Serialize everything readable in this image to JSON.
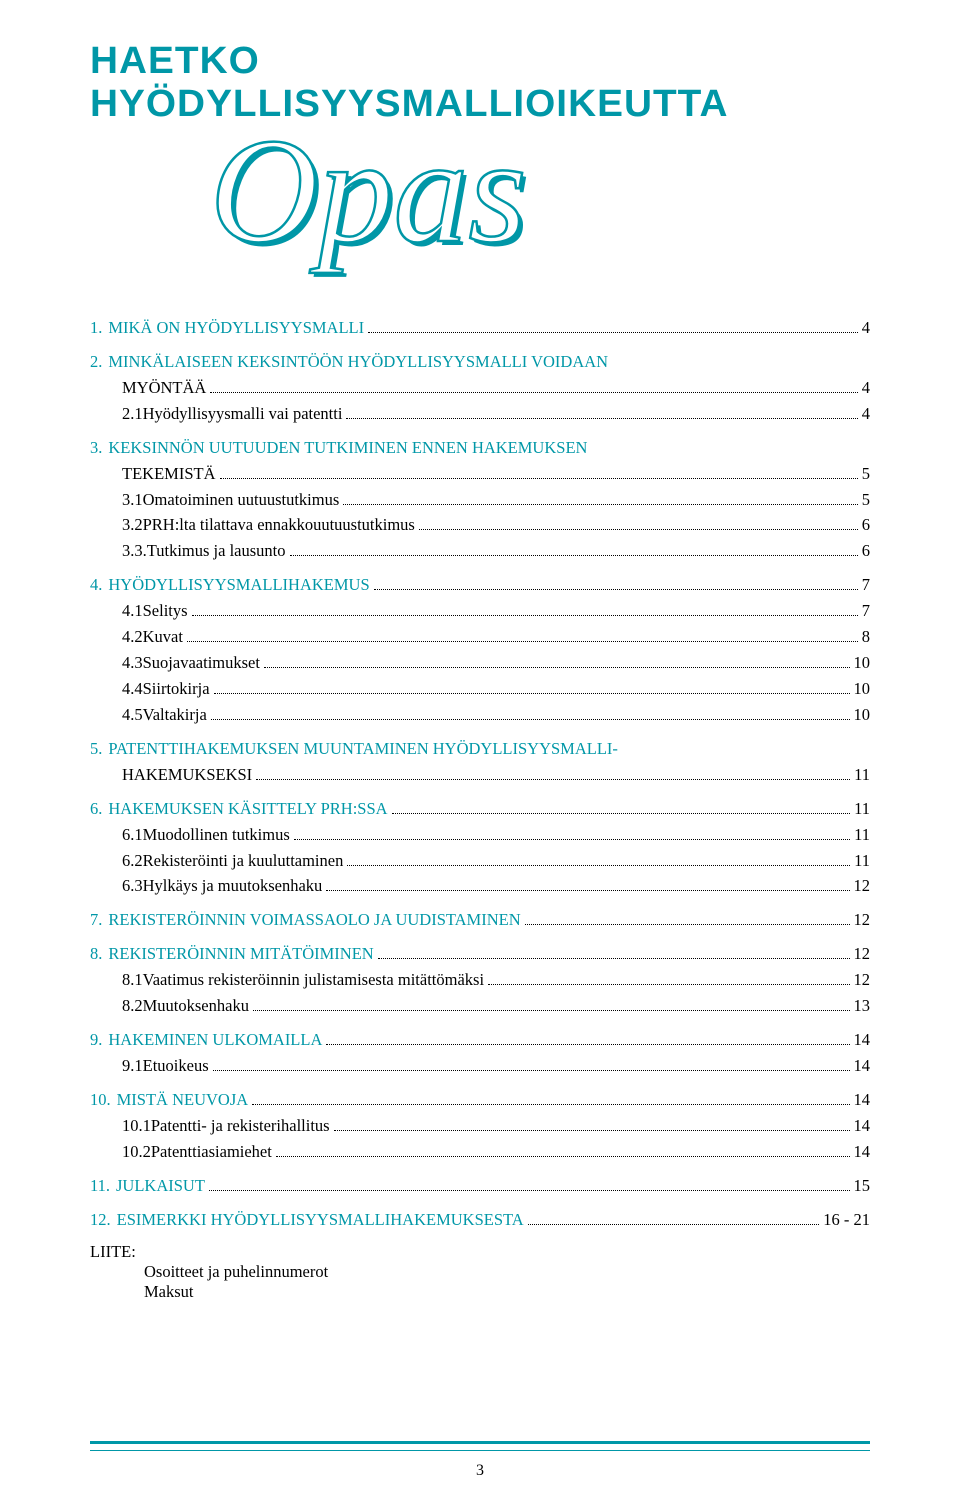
{
  "colors": {
    "accent": "#0097a7",
    "background": "#ffffff"
  },
  "page_number": "3",
  "title": "HAETKO HYÖDYLLISYYSMALLIOIKEUTTA",
  "opas_label": "Opas",
  "toc": [
    {
      "n": "1.",
      "label": "MIKÄ ON HYÖDYLLISYYSMALLI",
      "page": "4",
      "top": true
    },
    {
      "n": "2.",
      "label": "MINKÄLAISEEN KEKSINTÖÖN HYÖDYLLISYYSMALLI VOIDAAN",
      "top": true,
      "nobreak_next": true
    },
    {
      "cont": true,
      "label": "MYÖNTÄÄ",
      "page": "4"
    },
    {
      "sub": true,
      "n": "2.1",
      "label": "Hyödyllisyysmalli vai patentti",
      "page": "4"
    },
    {
      "n": "3.",
      "label": "KEKSINNÖN UUTUUDEN TUTKIMINEN ENNEN HAKEMUKSEN",
      "top": true,
      "nobreak_next": true
    },
    {
      "cont": true,
      "label": "TEKEMISTÄ",
      "page": "5"
    },
    {
      "sub": true,
      "n": "3.1",
      "label": "Omatoiminen uutuustutkimus",
      "page": "5"
    },
    {
      "sub": true,
      "n": "3.2",
      "label": "PRH:lta tilattava ennakkouutuustutkimus",
      "page": "6"
    },
    {
      "sub": true,
      "n": "3.3.",
      "label": "Tutkimus ja lausunto",
      "page": "6"
    },
    {
      "n": "4.",
      "label": "HYÖDYLLISYYSMALLIHAKEMUS",
      "page": "7",
      "top": true
    },
    {
      "sub": true,
      "n": "4.1",
      "label": "Selitys",
      "page": "7"
    },
    {
      "sub": true,
      "n": "4.2",
      "label": "Kuvat",
      "page": "8"
    },
    {
      "sub": true,
      "n": "4.3",
      "label": "Suojavaatimukset",
      "page": "10"
    },
    {
      "sub": true,
      "n": "4.4",
      "label": "Siirtokirja",
      "page": "10"
    },
    {
      "sub": true,
      "n": "4.5",
      "label": "Valtakirja",
      "page": "10"
    },
    {
      "n": "5.",
      "label": "PATENTTIHAKEMUKSEN MUUNTAMINEN HYÖDYLLISYYSMALLI-",
      "top": true,
      "nobreak_next": true
    },
    {
      "cont": true,
      "label": "HAKEMUKSEKSI",
      "page": "11"
    },
    {
      "n": "6.",
      "label": "HAKEMUKSEN KÄSITTELY PRH:SSA",
      "page": "11",
      "top": true
    },
    {
      "sub": true,
      "n": "6.1",
      "label": "Muodollinen tutkimus",
      "page": "11"
    },
    {
      "sub": true,
      "n": "6.2",
      "label": "Rekisteröinti ja kuuluttaminen",
      "page": "11"
    },
    {
      "sub": true,
      "n": "6.3",
      "label": "Hylkäys ja muutoksenhaku",
      "page": "12"
    },
    {
      "n": "7.",
      "label": "REKISTERÖINNIN VOIMASSAOLO JA UUDISTAMINEN",
      "page": "12",
      "top": true
    },
    {
      "n": "8.",
      "label": "REKISTERÖINNIN MITÄTÖIMINEN",
      "page": "12",
      "top": true
    },
    {
      "sub": true,
      "n": "8.1",
      "label": "Vaatimus rekisteröinnin julistamisesta mitättömäksi",
      "page": "12"
    },
    {
      "sub": true,
      "n": "8.2",
      "label": "Muutoksenhaku",
      "page": "13"
    },
    {
      "n": "9.",
      "label": "HAKEMINEN ULKOMAILLA",
      "page": "14",
      "top": true
    },
    {
      "sub": true,
      "n": "9.1",
      "label": "Etuoikeus",
      "page": "14"
    },
    {
      "n": "10.",
      "label": "MISTÄ NEUVOJA",
      "page": "14",
      "top": true
    },
    {
      "sub": true,
      "n": "10.1",
      "label": "Patentti- ja rekisterihallitus",
      "page": "14"
    },
    {
      "sub": true,
      "n": "10.2",
      "label": "Patenttiasiamiehet",
      "page": "14"
    },
    {
      "n": "11.",
      "label": "JULKAISUT",
      "page": "15",
      "top": true
    },
    {
      "n": "12.",
      "label": "ESIMERKKI HYÖDYLLISYYSMALLIHAKEMUKSESTA",
      "page": "16 - 21",
      "top": true
    }
  ],
  "appendix": {
    "heading": "LIITE:",
    "lines": [
      "Osoitteet ja puhelinnumerot",
      "Maksut"
    ]
  }
}
